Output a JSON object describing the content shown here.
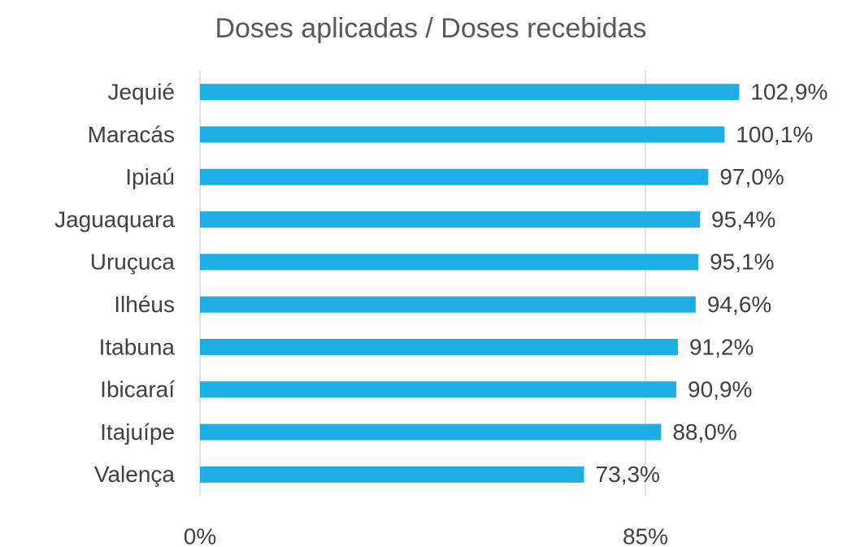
{
  "chart_data": {
    "type": "bar",
    "orientation": "horizontal",
    "title": "Doses aplicadas / Doses recebidas",
    "categories": [
      "Jequié",
      "Maracás",
      "Ipiaú",
      "Jaguaquara",
      "Uruçuca",
      "Ilhéus",
      "Itabuna",
      "Ibicaraí",
      "Itajuípe",
      "Valença"
    ],
    "values": [
      102.9,
      100.1,
      97.0,
      95.4,
      95.1,
      94.6,
      91.2,
      90.9,
      88.0,
      73.3
    ],
    "value_labels": [
      "102,9%",
      "100,1%",
      "97,0%",
      "95,4%",
      "95,1%",
      "94,6%",
      "91,2%",
      "90,9%",
      "88,0%",
      "73,3%"
    ],
    "color": "#1eaee6",
    "xlim": [
      0,
      120
    ],
    "xticks": [
      {
        "value": 0,
        "label": "0%"
      },
      {
        "value": 85,
        "label": "85%"
      }
    ],
    "grid": true
  }
}
